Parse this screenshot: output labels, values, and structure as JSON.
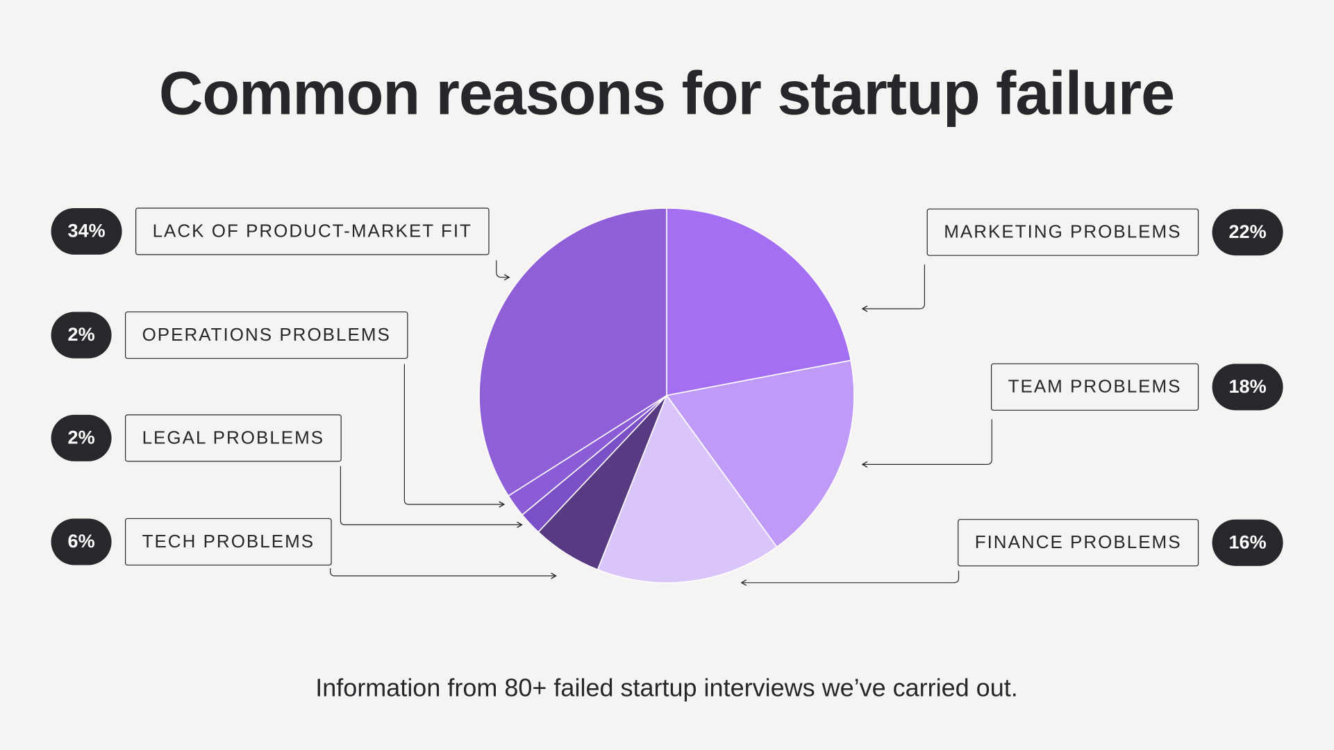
{
  "chart_data": {
    "type": "pie",
    "title": "Common reasons for startup failure",
    "footnote": "Information from 80+ failed startup interviews we’ve carried out.",
    "categories": [
      "MARKETING PROBLEMS",
      "TEAM PROBLEMS",
      "FINANCE PROBLEMS",
      "TECH PROBLEMS",
      "LEGAL PROBLEMS",
      "OPERATIONS PROBLEMS",
      "LACK OF PRODUCT-MARKET FIT"
    ],
    "values": [
      22,
      18,
      16,
      6,
      2,
      2,
      34
    ],
    "value_labels": [
      "22%",
      "18%",
      "16%",
      "6%",
      "2%",
      "2%",
      "34%"
    ],
    "colors": [
      "#a46ff2",
      "#bf9af6",
      "#dac5fa",
      "#573a82",
      "#7b4fc6",
      "#8a5cd6",
      "#8f5fd8"
    ]
  }
}
